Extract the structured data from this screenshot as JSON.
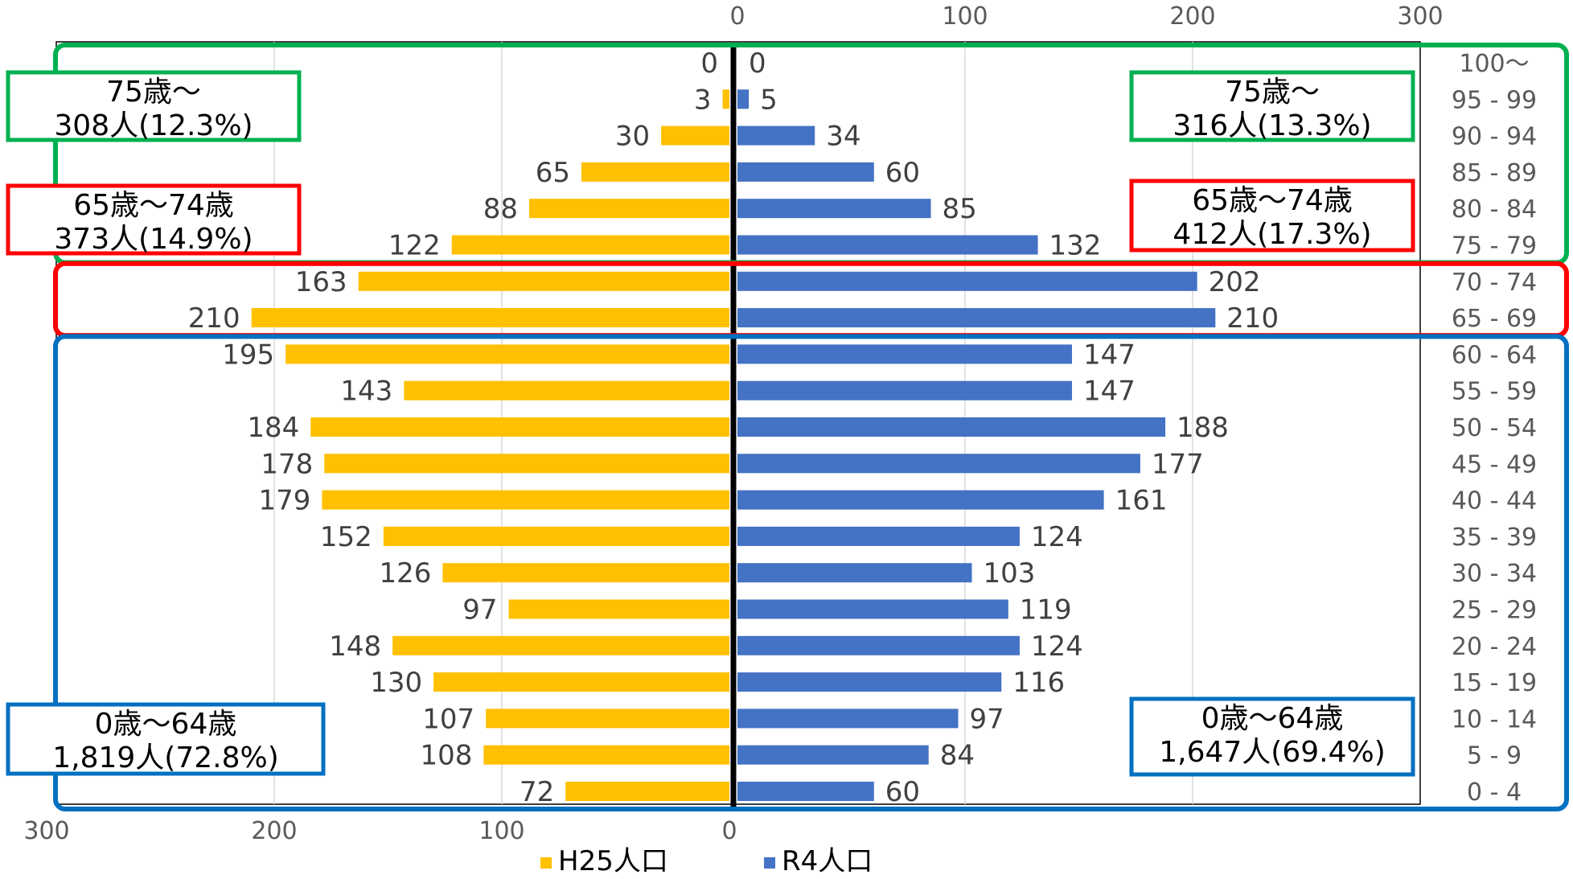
{
  "chart_data": {
    "type": "bar",
    "orientation": "horizontal-pyramid",
    "title": "",
    "xlabel": "",
    "ylabel": "",
    "xlim": [
      0,
      300
    ],
    "x_ticks_top": [
      "0",
      "100",
      "200",
      "300"
    ],
    "x_ticks_bottom": [
      "300",
      "200",
      "100",
      "0"
    ],
    "grid": true,
    "legend_placement": "bottom",
    "categories": [
      "100～",
      "95 - 99",
      "90 - 94",
      "85 - 89",
      "80 - 84",
      "75 - 79",
      "70 - 74",
      "65 - 69",
      "60 - 64",
      "55 - 59",
      "50 - 54",
      "45 - 49",
      "40 - 44",
      "35 - 39",
      "30 - 34",
      "25 - 29",
      "20 - 24",
      "15 - 19",
      "10 - 14",
      "5 - 9",
      "0 - 4"
    ],
    "series": [
      {
        "name": "H25人口",
        "side": "left",
        "color": "#FFC000",
        "values": [
          0,
          3,
          30,
          65,
          88,
          122,
          163,
          210,
          195,
          143,
          184,
          178,
          179,
          152,
          126,
          97,
          148,
          130,
          107,
          108,
          72
        ]
      },
      {
        "name": "R4人口",
        "side": "right",
        "color": "#4472C4",
        "values": [
          0,
          5,
          34,
          60,
          85,
          132,
          202,
          210,
          147,
          147,
          188,
          177,
          161,
          124,
          103,
          119,
          124,
          116,
          97,
          84,
          60
        ]
      }
    ],
    "group_frames": [
      {
        "id": "75plus",
        "color": "#00B050",
        "rows": [
          0,
          5
        ]
      },
      {
        "id": "65to74",
        "color": "#FF0000",
        "rows": [
          6,
          7
        ]
      },
      {
        "id": "0to64",
        "color": "#0070C0",
        "rows": [
          8,
          20
        ]
      }
    ],
    "annotations": [
      {
        "group": "75plus",
        "side": "left",
        "color": "#00B050",
        "line1": "75歳～",
        "line2": "308人(12.3%)"
      },
      {
        "group": "65to74",
        "side": "left",
        "color": "#FF0000",
        "line1": "65歳～74歳",
        "line2": "373人(14.9%)"
      },
      {
        "group": "0to64",
        "side": "left",
        "color": "#0070C0",
        "line1": "0歳～64歳",
        "line2": "1,819人(72.8%)"
      },
      {
        "group": "75plus",
        "side": "right",
        "color": "#00B050",
        "line1": "75歳～",
        "line2": "316人(13.3%)"
      },
      {
        "group": "65to74",
        "side": "right",
        "color": "#FF0000",
        "line1": "65歳～74歳",
        "line2": "412人(17.3%)"
      },
      {
        "group": "0to64",
        "side": "right",
        "color": "#0070C0",
        "line1": "0歳～64歳",
        "line2": "1,647人(69.4%)"
      }
    ]
  }
}
